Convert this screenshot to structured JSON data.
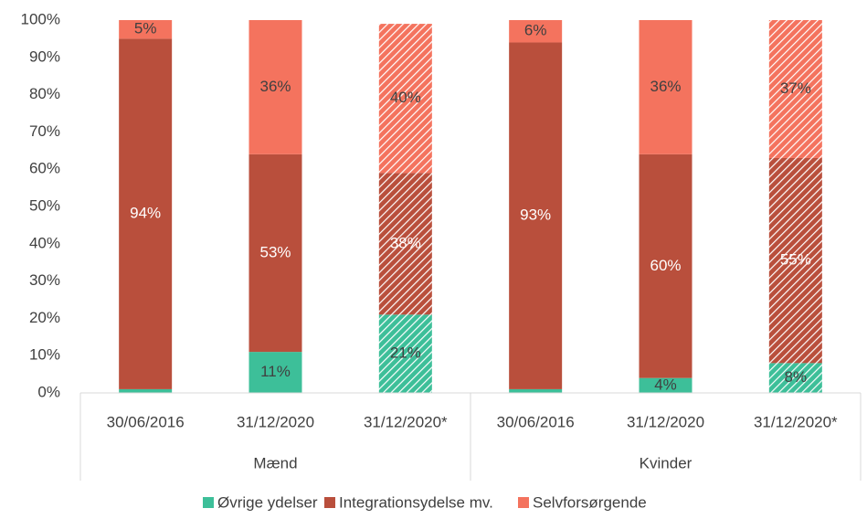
{
  "chart_data": {
    "type": "stacked-bar",
    "categories": [
      "30/06/2016",
      "31/12/2020",
      "31/12/2020*",
      "30/06/2016",
      "31/12/2020",
      "31/12/2020*"
    ],
    "groups": [
      "Mænd",
      "Kvinder"
    ],
    "hatched": [
      false,
      false,
      true,
      false,
      false,
      true
    ],
    "series": [
      {
        "name": "Øvrige ydelser",
        "color": "#3dbf99",
        "values": [
          1,
          11,
          21,
          1,
          4,
          8
        ],
        "value_labels": [
          null,
          "11%",
          "21%",
          null,
          "4%",
          "8%"
        ]
      },
      {
        "name": "Integrationsydelse mv.",
        "color": "#b94f3c",
        "values": [
          94,
          53,
          38,
          93,
          60,
          55
        ],
        "value_labels": [
          "94%",
          "53%",
          "38%",
          "93%",
          "60%",
          "55%"
        ]
      },
      {
        "name": "Selvforsørgende",
        "color": "#f4735e",
        "values": [
          5,
          36,
          40,
          6,
          36,
          37
        ],
        "value_labels": [
          "5%",
          "36%",
          "40%",
          "6%",
          "36%",
          "37%"
        ]
      }
    ],
    "ylim": [
      0,
      100
    ],
    "yticks": [
      {
        "value": 0,
        "label": "0%"
      },
      {
        "value": 10,
        "label": "10%"
      },
      {
        "value": 20,
        "label": "20%"
      },
      {
        "value": 30,
        "label": "30%"
      },
      {
        "value": 40,
        "label": "40%"
      },
      {
        "value": 50,
        "label": "50%"
      },
      {
        "value": 60,
        "label": "60%"
      },
      {
        "value": 70,
        "label": "70%"
      },
      {
        "value": 80,
        "label": "80%"
      },
      {
        "value": 90,
        "label": "90%"
      },
      {
        "value": 100,
        "label": "100%"
      }
    ]
  }
}
